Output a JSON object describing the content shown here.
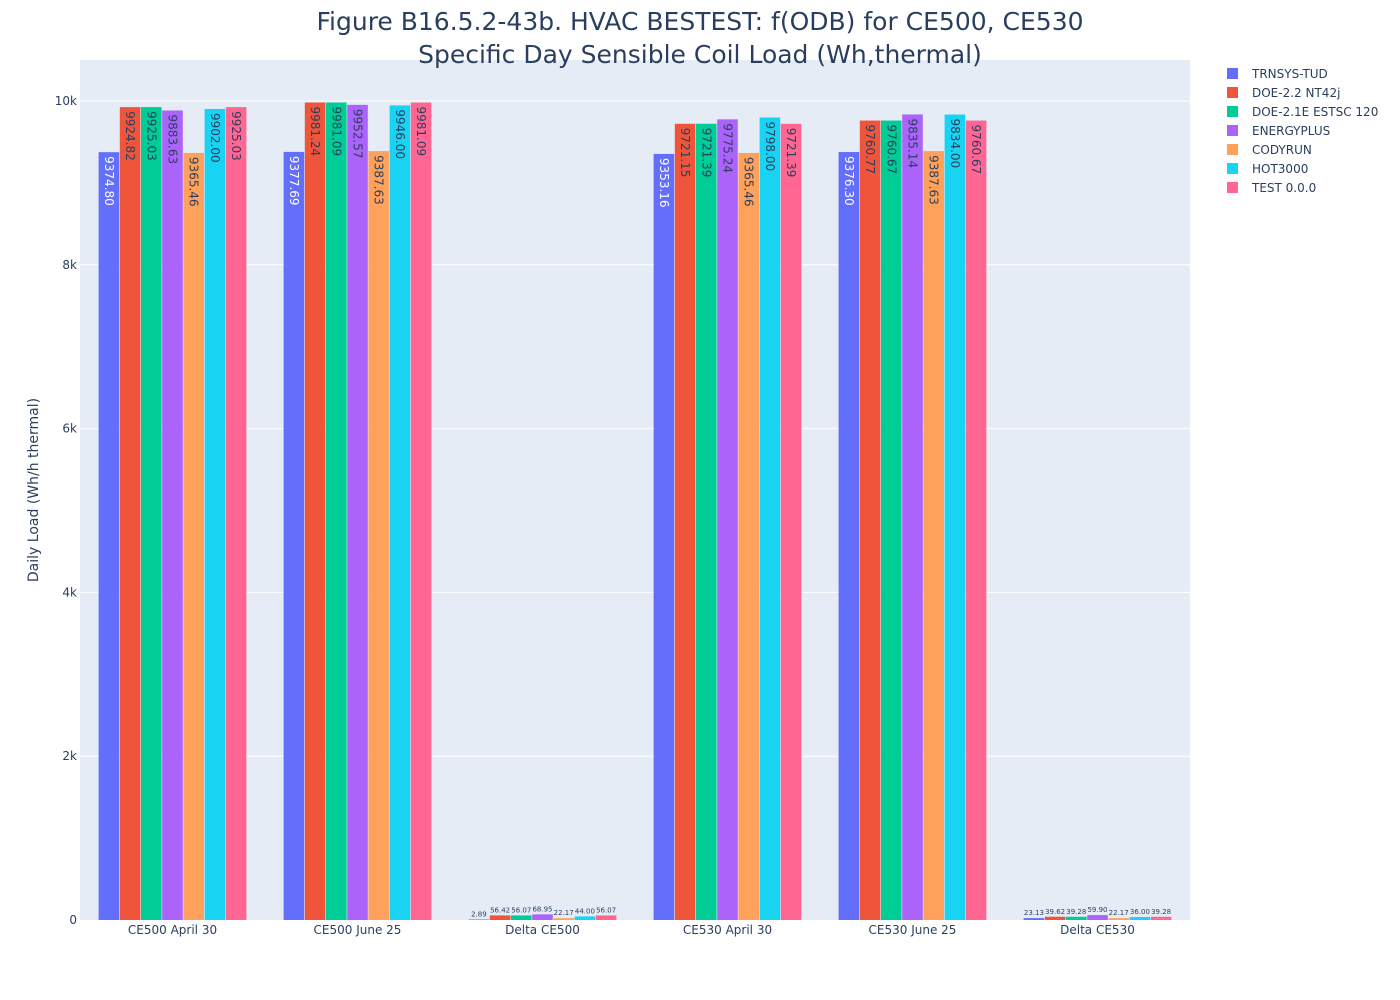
{
  "chart_data": {
    "type": "bar",
    "title_line1": "Figure B16.5.2-43b. HVAC BESTEST: f(ODB) for CE500, CE530",
    "title_line2": "Specific Day Sensible Coil Load (Wh,thermal)",
    "xlabel": "",
    "ylabel": "Daily Load (Wh/h thermal)",
    "ylim": [
      0,
      10500
    ],
    "yticks": [
      0,
      2000,
      4000,
      6000,
      8000,
      10000
    ],
    "ytick_labels": [
      "0",
      "2k",
      "4k",
      "6k",
      "8k",
      "10k"
    ],
    "grid": true,
    "legend_position": "top-right",
    "categories": [
      "CE500 April 30",
      "CE500 June 25",
      "Delta CE500",
      "CE530 April 30",
      "CE530 June 25",
      "Delta CE530"
    ],
    "series": [
      {
        "name": "TRNSYS-TUD",
        "color": "#636efa",
        "values": [
          9374.8,
          9377.69,
          2.89,
          9353.16,
          9376.3,
          23.13
        ],
        "labels": [
          "9374.80",
          "9377.69",
          "2.89",
          "9353.16",
          "9376.30",
          "23.13"
        ]
      },
      {
        "name": "DOE-2.2 NT42j",
        "color": "#ef553b",
        "values": [
          9924.82,
          9981.24,
          56.42,
          9721.15,
          9760.77,
          39.62
        ],
        "labels": [
          "9924.82",
          "9981.24",
          "56.42",
          "9721.15",
          "9760.77",
          "39.62"
        ]
      },
      {
        "name": "DOE-2.1E ESTSC 120",
        "color": "#00cc96",
        "values": [
          9925.03,
          9981.09,
          56.07,
          9721.39,
          9760.67,
          39.28
        ],
        "labels": [
          "9925.03",
          "9981.09",
          "56.07",
          "9721.39",
          "9760.67",
          "39.28"
        ]
      },
      {
        "name": "ENERGYPLUS",
        "color": "#ab63fa",
        "values": [
          9883.63,
          9952.57,
          68.95,
          9775.24,
          9835.14,
          59.9
        ],
        "labels": [
          "9883.63",
          "9952.57",
          "68.95",
          "9775.24",
          "9835.14",
          "59.90"
        ]
      },
      {
        "name": "CODYRUN",
        "color": "#ffa15a",
        "values": [
          9365.46,
          9387.63,
          22.17,
          9365.46,
          9387.63,
          22.17
        ],
        "labels": [
          "9365.46",
          "9387.63",
          "22.17",
          "9365.46",
          "9387.63",
          "22.17"
        ]
      },
      {
        "name": "HOT3000",
        "color": "#19d3f3",
        "values": [
          9902.0,
          9946.0,
          44.0,
          9798.0,
          9834.0,
          36.0
        ],
        "labels": [
          "9902.00",
          "9946.00",
          "44.00",
          "9798.00",
          "9834.00",
          "36.00"
        ]
      },
      {
        "name": "TEST 0.0.0",
        "color": "#ff6692",
        "values": [
          9925.03,
          9981.09,
          56.07,
          9721.39,
          9760.67,
          39.28
        ],
        "labels": [
          "9925.03",
          "9981.09",
          "56.07",
          "9721.39",
          "9760.67",
          "39.28"
        ]
      }
    ],
    "colors": {
      "plot_background": "#e5ecf6",
      "grid": "#ffffff",
      "text": "#2a3f5f"
    }
  }
}
